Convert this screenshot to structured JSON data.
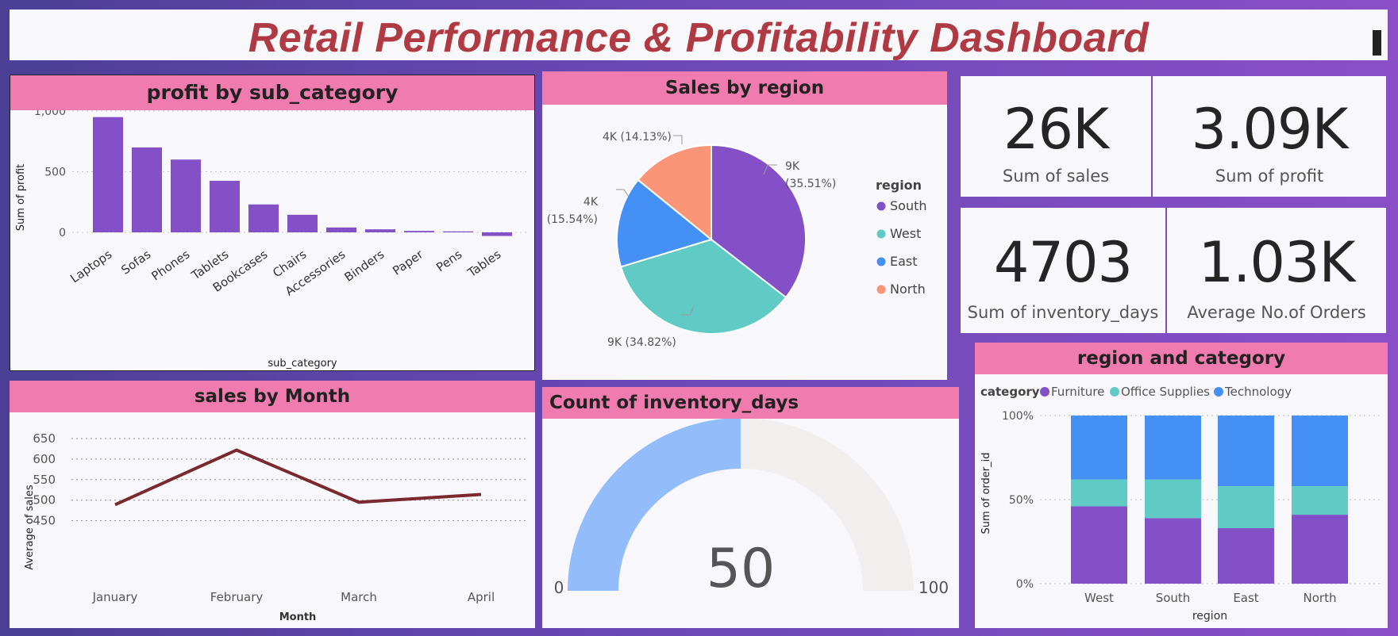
{
  "title": "Retail Performance & Profitability Dashboard",
  "colors": {
    "header_pink": "#f07bae",
    "purple": "#8450c8",
    "teal": "#5fcbc4",
    "blue": "#4590f5",
    "salmon": "#fb9577",
    "line": "#7a2a2e",
    "gauge_fill": "#92bdfa",
    "gauge_empty": "#f0efed"
  },
  "profit_chart": {
    "title": "profit by sub_category",
    "xlabel": "sub_category",
    "ylabel": "Sum of profit",
    "yticks": [
      "1,000",
      "500",
      "0"
    ]
  },
  "region_pie": {
    "title": "Sales by region",
    "legend_title": "region",
    "labels": [
      "9K",
      "(35.51%)",
      "9K (34.82%)",
      "4K",
      "(15.54%)",
      "4K (14.13%)"
    ]
  },
  "kpis": [
    {
      "value": "26K",
      "label": "Sum of sales"
    },
    {
      "value": "3.09K",
      "label": "Sum of profit"
    },
    {
      "value": "4703",
      "label": "Sum of inventory_days"
    },
    {
      "value": "1.03K",
      "label": "Average No.of Orders"
    }
  ],
  "month_chart": {
    "title": "sales by Month",
    "xlabel": "Month",
    "ylabel": "Average of sales",
    "yticks": [
      "650",
      "600",
      "550",
      "500",
      "450"
    ]
  },
  "gauge": {
    "title": "Count of inventory_days",
    "value": 50,
    "value_label": "50",
    "min_label": "0",
    "max_label": "100"
  },
  "stacked_chart": {
    "title": "region and category",
    "legend_title": "category",
    "xlabel": "region",
    "ylabel": "Sum of order_id",
    "yticks": [
      "100%",
      "50%",
      "0%"
    ]
  },
  "chart_data": [
    {
      "type": "bar",
      "title": "profit by sub_category",
      "xlabel": "sub_category",
      "ylabel": "Sum of profit",
      "categories": [
        "Laptops",
        "Sofas",
        "Phones",
        "Tablets",
        "Bookcases",
        "Chairs",
        "Accessories",
        "Binders",
        "Paper",
        "Pens",
        "Tables"
      ],
      "values": [
        950,
        700,
        600,
        425,
        230,
        145,
        40,
        25,
        12,
        8,
        -30
      ],
      "ylim": [
        -60,
        1050
      ],
      "grid": true
    },
    {
      "type": "pie",
      "title": "Sales by region",
      "legend_title": "region",
      "categories": [
        "South",
        "West",
        "East",
        "North"
      ],
      "values": [
        35.51,
        34.82,
        15.54,
        14.13
      ],
      "legend": "right"
    },
    {
      "type": "line",
      "title": "sales by Month",
      "xlabel": "Month",
      "ylabel": "Average of sales",
      "categories": [
        "January",
        "February",
        "March",
        "April"
      ],
      "values": [
        489,
        622,
        495,
        514
      ],
      "ylim": [
        450,
        650
      ],
      "grid": true
    },
    {
      "type": "bar",
      "title": "region and category",
      "xlabel": "region",
      "ylabel": "Sum of order_id",
      "categories": [
        "West",
        "South",
        "East",
        "North"
      ],
      "series": [
        {
          "name": "Furniture",
          "values": [
            46,
            39,
            33,
            41
          ]
        },
        {
          "name": "Office Supplies",
          "values": [
            16,
            23,
            25,
            17
          ]
        },
        {
          "name": "Technology",
          "values": [
            38,
            38,
            42,
            42
          ]
        }
      ],
      "stacked": "percent",
      "legend": "top-left"
    }
  ]
}
